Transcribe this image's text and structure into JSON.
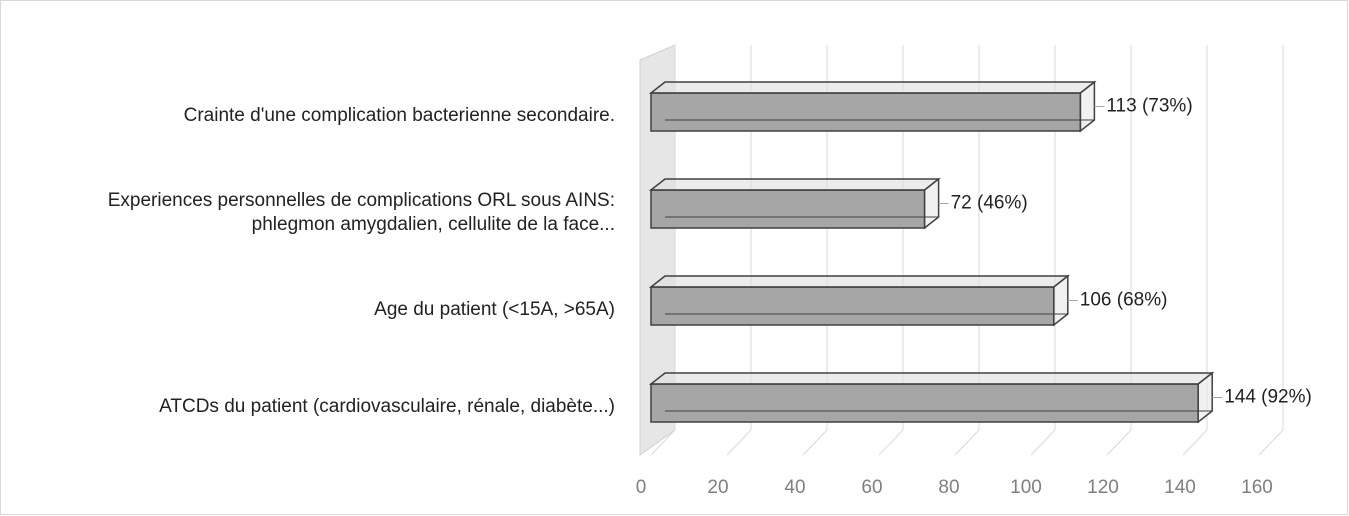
{
  "chart_data": {
    "type": "bar3d_horizontal",
    "categories": [
      "Crainte d'une complication bacterienne secondaire.",
      "Experiences personnelles de complications ORL sous AINS: phlegmon amygdalien, cellulite de la face...",
      "Age du patient (<15A, >65A)",
      "ATCDs du patient (cardiovasculaire, rénale, diabète...)"
    ],
    "values": [
      113,
      72,
      106,
      144
    ],
    "value_labels": [
      "113 (73%)",
      "72 (46%)",
      "106 (68%)",
      "144 (92%)"
    ],
    "color": "#a6a6a6",
    "xlim": [
      0,
      160
    ],
    "xticks": [
      0,
      20,
      40,
      60,
      80,
      100,
      120,
      140,
      160
    ],
    "grid": true
  }
}
